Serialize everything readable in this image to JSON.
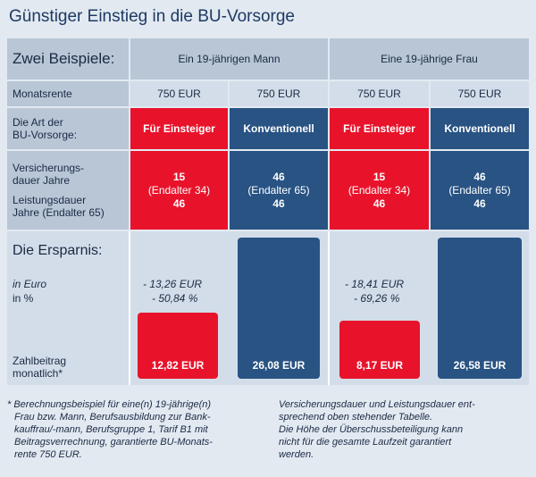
{
  "title": "Günstiger Einstieg in die BU-Vorsorge",
  "header": {
    "label": "Zwei Beispiele:",
    "col_man": "Ein 19-jährigen Mann",
    "col_woman": "Eine 19-jährige Frau"
  },
  "rows": {
    "monatsrente_label": "Monatsrente",
    "monatsrente": [
      "750 EUR",
      "750 EUR",
      "750 EUR",
      "750 EUR"
    ],
    "art_label_1": "Die Art der",
    "art_label_2": "BU-Vorsorge:",
    "art": [
      "Für Einsteiger",
      "Konventionell",
      "Für Einsteiger",
      "Konventionell"
    ],
    "versicherung_label_1": "Versicherungs-",
    "versicherung_label_2": "dauer Jahre",
    "versicherung": [
      "15",
      "46",
      "15",
      "46"
    ],
    "endalter": [
      "(Endalter 34)",
      "(Endalter 65)",
      "(Endalter 34)",
      "(Endalter 65)"
    ],
    "leistung_label_1": "Leistungsdauer",
    "leistung_label_2": "Jahre (Endalter 65)",
    "leistung": [
      "46",
      "46",
      "46",
      "46"
    ]
  },
  "ersparnis": {
    "heading": "Die Ersparnis:",
    "label_euro": "in Euro",
    "label_pct": "in %",
    "man_euro": "- 13,26 EUR",
    "man_pct": "- 50,84 %",
    "woman_euro": "- 18,41 EUR",
    "woman_pct": "- 69,26 %",
    "zahl_label_1": "Zahlbeitrag",
    "zahl_label_2": "monatlich*",
    "bars": [
      "12,82 EUR",
      "26,08 EUR",
      "8,17 EUR",
      "26,58 EUR"
    ]
  },
  "footnote_left": [
    "* Berechnungsbeispiel für eine(n) 19-jährige(n)",
    "Frau bzw. Mann, Berufsausbildung zur Bank-",
    "kauffrau/-mann, Berufsgruppe 1, Tarif B1 mit",
    "Beitragsverrechnung, garantierte BU-Monats-",
    "rente 750 EUR."
  ],
  "footnote_right": [
    "Versicherungsdauer und Leistungsdauer ent-",
    "sprechend oben stehender Tabelle.",
    "Die Höhe der Überschussbeteiligung kann",
    "nicht für die gesamte Laufzeit garantiert",
    "werden."
  ],
  "colors": {
    "red": "#e8132b",
    "blue": "#285383",
    "gray": "#b8c6d6",
    "light": "#d3dde9"
  }
}
